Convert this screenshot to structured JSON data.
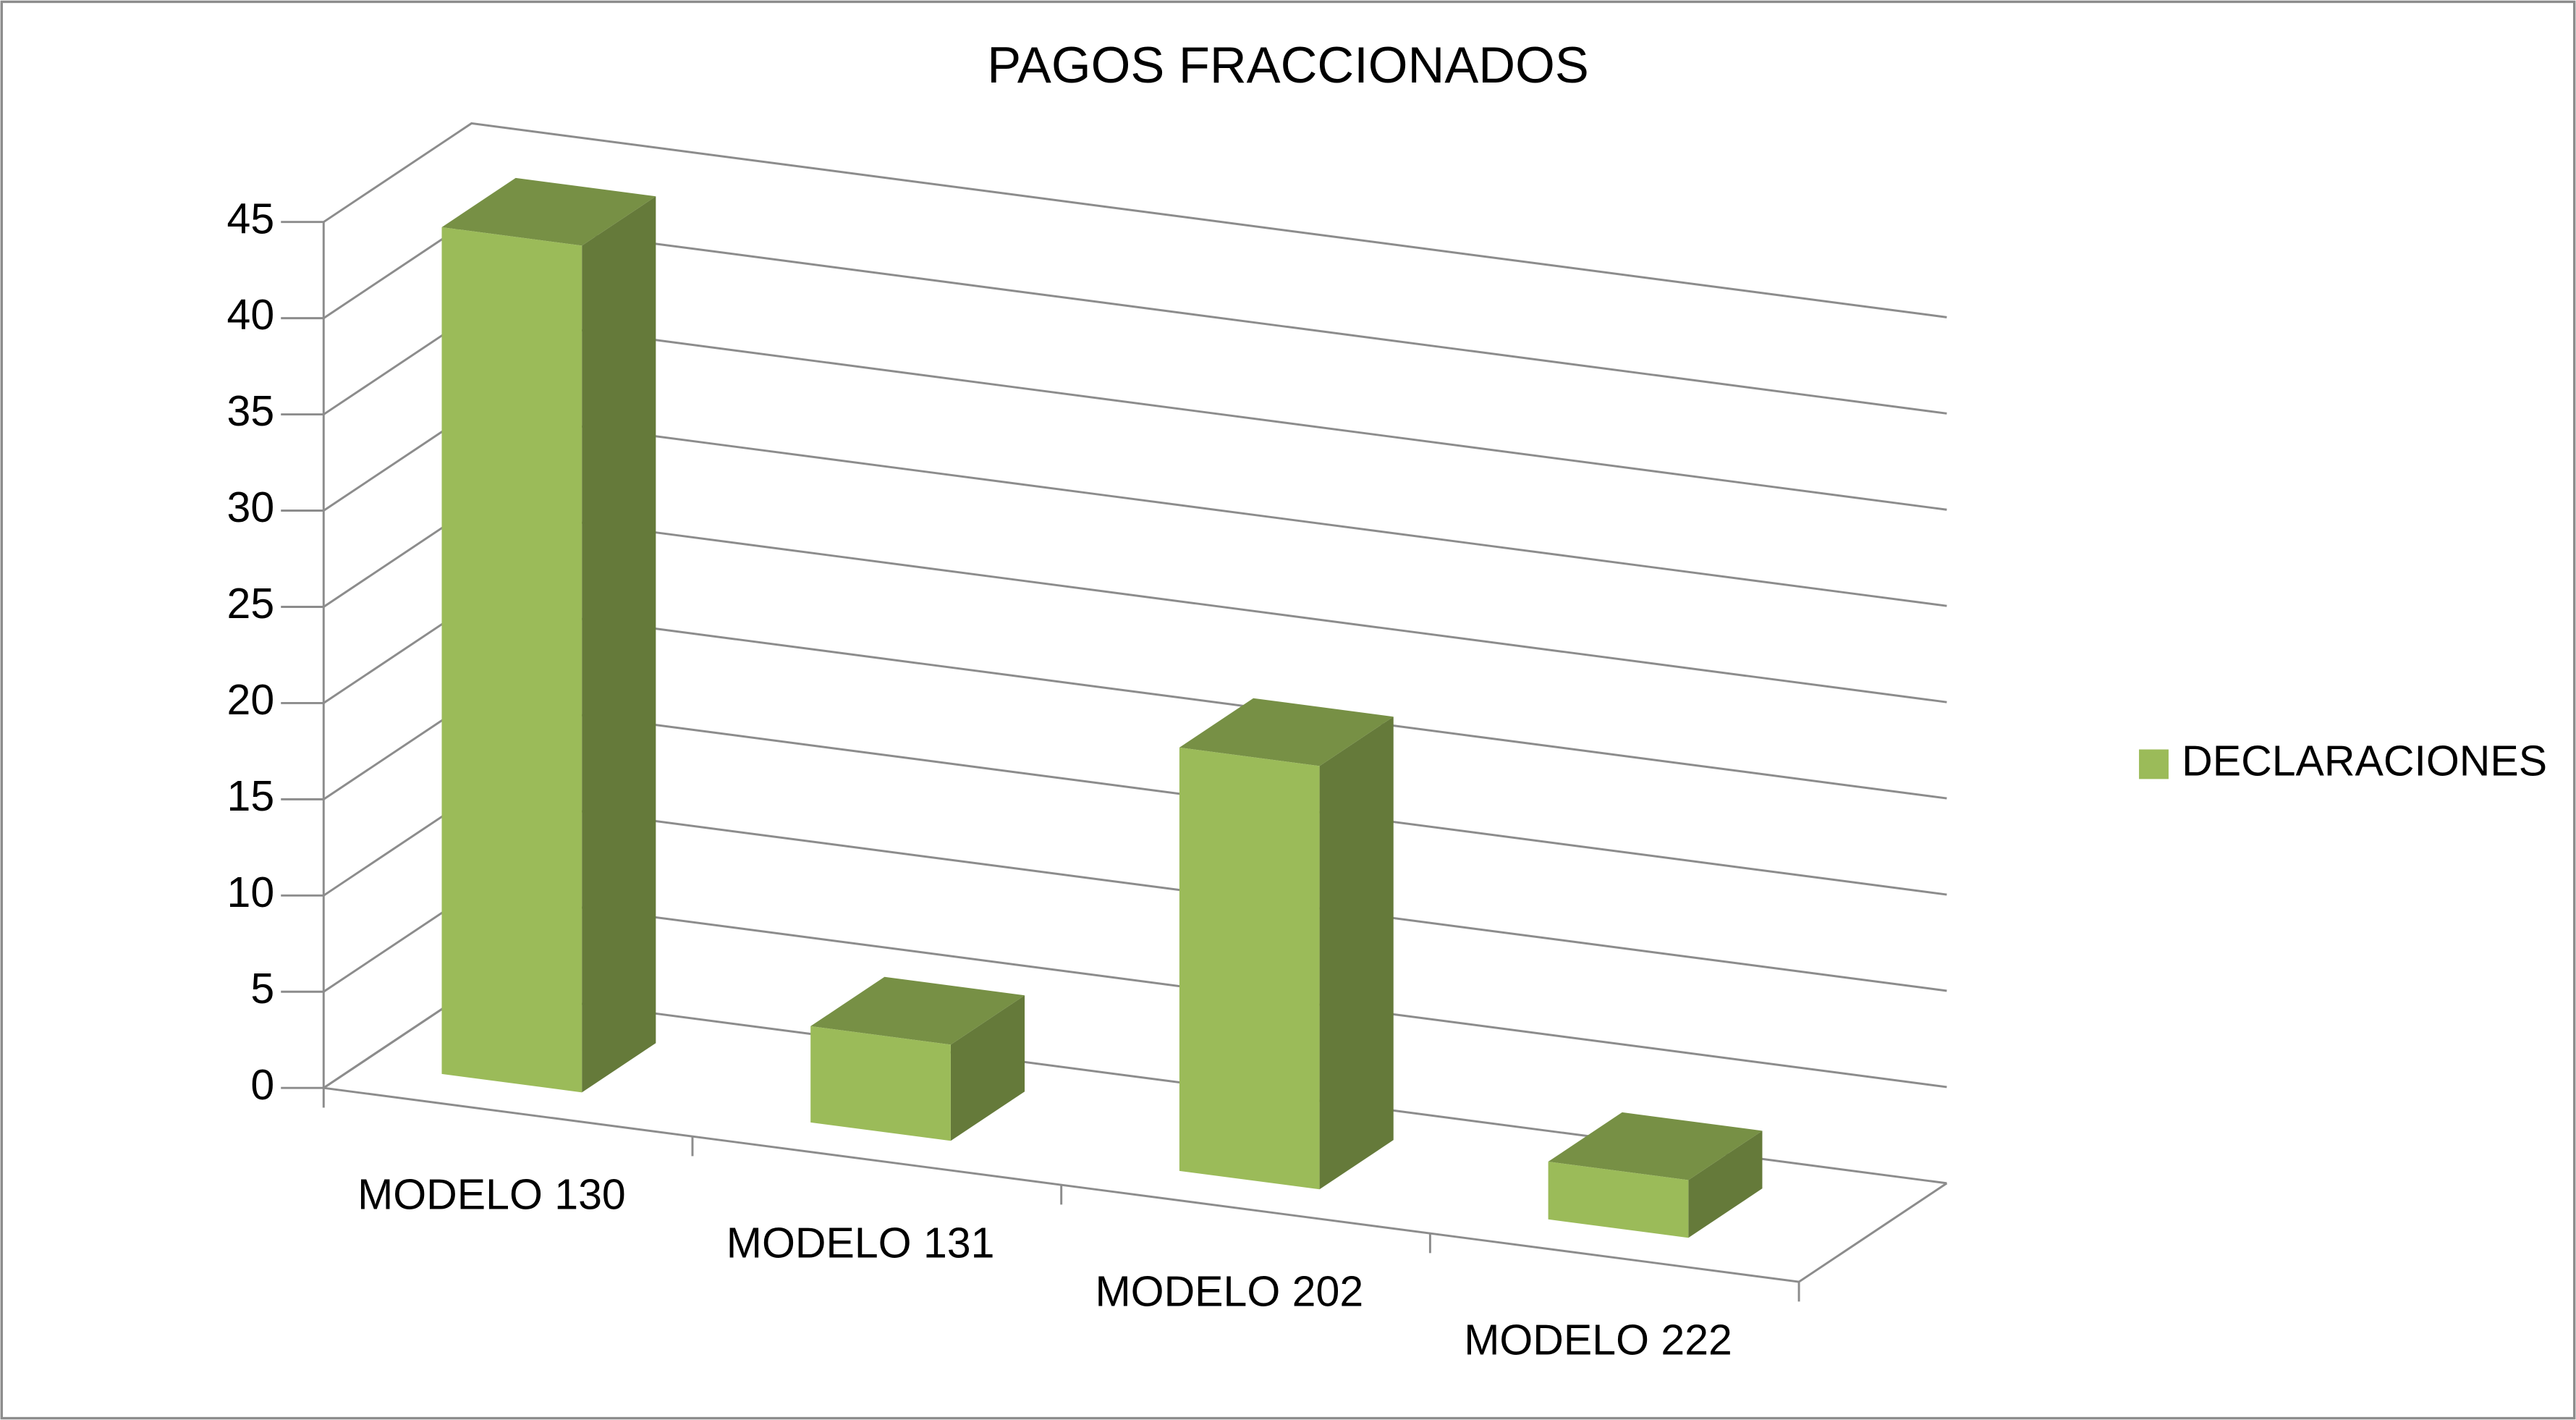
{
  "chart_data": {
    "type": "bar3d",
    "title": "PAGOS FRACCIONADOS",
    "categories": [
      "MODELO 130",
      "MODELO 131",
      "MODELO 202",
      "MODELO 222"
    ],
    "series": [
      {
        "name": "DECLARACIONES",
        "color": "#9bbb59",
        "values": [
          44,
          5,
          22,
          3
        ]
      }
    ],
    "ylim": [
      0,
      45
    ],
    "yticks": [
      0,
      5,
      10,
      15,
      20,
      25,
      30,
      35,
      40,
      45
    ],
    "grid": true,
    "legend": "right"
  }
}
